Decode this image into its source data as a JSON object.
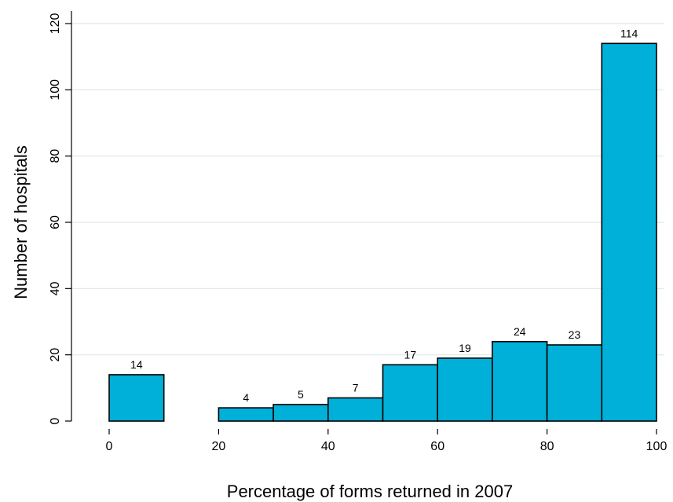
{
  "chart_data": {
    "type": "bar",
    "xlabel": "Percentage of forms returned in 2007",
    "ylabel": "Number of hospitals",
    "xlim": [
      0,
      100
    ],
    "ylim": [
      0,
      120
    ],
    "x_ticks": [
      "0",
      "20",
      "40",
      "60",
      "80",
      "100"
    ],
    "y_ticks": [
      "0",
      "20",
      "40",
      "60",
      "80",
      "100",
      "120"
    ],
    "grid": true,
    "bar_color": "#00b0d8",
    "bins": [
      {
        "start": 0,
        "end": 10,
        "value": 14,
        "label": "14"
      },
      {
        "start": 20,
        "end": 30,
        "value": 4,
        "label": "4"
      },
      {
        "start": 30,
        "end": 40,
        "value": 5,
        "label": "5"
      },
      {
        "start": 40,
        "end": 50,
        "value": 7,
        "label": "7"
      },
      {
        "start": 50,
        "end": 60,
        "value": 17,
        "label": "17"
      },
      {
        "start": 60,
        "end": 70,
        "value": 19,
        "label": "19"
      },
      {
        "start": 70,
        "end": 80,
        "value": 24,
        "label": "24"
      },
      {
        "start": 80,
        "end": 90,
        "value": 23,
        "label": "23"
      },
      {
        "start": 90,
        "end": 100,
        "value": 114,
        "label": "114"
      }
    ]
  }
}
